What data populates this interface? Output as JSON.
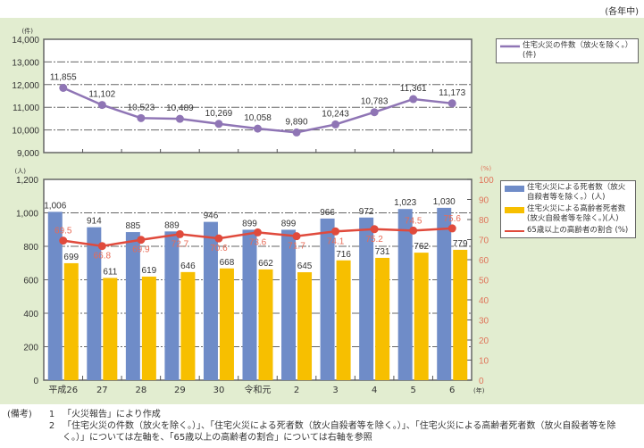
{
  "header": {
    "period_note": "(各年中)"
  },
  "chart_data": [
    {
      "type": "line",
      "title": "",
      "categories": [
        "平成26",
        "27",
        "28",
        "29",
        "30",
        "令和元",
        "2",
        "3",
        "4",
        "5",
        "6"
      ],
      "ylabel": "(件)",
      "ylim": [
        9000,
        14000
      ],
      "yticks": [
        9000,
        10000,
        11000,
        12000,
        13000,
        14000
      ],
      "ytick_labels": [
        "9,000",
        "10,000",
        "11,000",
        "12,000",
        "13,000",
        "14,000"
      ],
      "grid": true,
      "legend_position": "right",
      "series": [
        {
          "name": "住宅火災の件数（放火を除く。）(件)",
          "color": "#8f75b5",
          "values": [
            11855,
            11102,
            10523,
            10489,
            10269,
            10058,
            9890,
            10243,
            10783,
            11361,
            11173
          ],
          "labels": [
            "11,855",
            "11,102",
            "10,523",
            "10,489",
            "10,269",
            "10,058",
            "9,890",
            "10,243",
            "10,783",
            "11,361",
            "11,173"
          ]
        }
      ],
      "legend": [
        "住宅火災の件数（放火を除く。）",
        "(件)"
      ]
    },
    {
      "type": "bar",
      "title": "",
      "categories": [
        "平成26",
        "27",
        "28",
        "29",
        "30",
        "令和元",
        "2",
        "3",
        "4",
        "5",
        "6"
      ],
      "xlabel": "(年)",
      "ylabel": "(人)",
      "ylim": [
        0,
        1200
      ],
      "yticks": [
        0,
        200,
        400,
        600,
        800,
        1000,
        1200
      ],
      "ytick_labels": [
        "0",
        "200",
        "400",
        "600",
        "800",
        "1,000",
        "1,200"
      ],
      "y2label": "(%)",
      "y2lim": [
        0,
        100
      ],
      "y2ticks": [
        0,
        10,
        20,
        30,
        40,
        50,
        60,
        70,
        80,
        90,
        100
      ],
      "grid": true,
      "legend_position": "right",
      "series": [
        {
          "name": "住宅火災による死者数（放火自殺者等を除く。）(人)",
          "color": "#6f8cc8",
          "axis": "left",
          "values": [
            1006,
            914,
            885,
            889,
            946,
            899,
            899,
            966,
            972,
            1023,
            1030
          ],
          "labels": [
            "1,006",
            "914",
            "885",
            "889",
            "946",
            "899",
            "899",
            "966",
            "972",
            "1,023",
            "1,030"
          ]
        },
        {
          "name": "住宅火災による高齢者死者数（放火自殺者等を除く。）(人)",
          "color": "#f7bf00",
          "axis": "left",
          "values": [
            699,
            611,
            619,
            646,
            668,
            662,
            645,
            716,
            731,
            762,
            779
          ],
          "labels": [
            "699",
            "611",
            "619",
            "646",
            "668",
            "662",
            "645",
            "716",
            "731",
            "762",
            "779"
          ]
        },
        {
          "name": "65歳以上の高齢者の割合(%)",
          "color": "#e04a3c",
          "axis": "right",
          "type": "line",
          "values": [
            69.5,
            66.8,
            69.9,
            72.7,
            70.6,
            73.6,
            71.7,
            74.1,
            75.2,
            74.5,
            75.6
          ],
          "labels": [
            "69.5",
            "66.8",
            "69.9",
            "72.7",
            "70.6",
            "73.6",
            "71.7",
            "74.1",
            "75.2",
            "74.5",
            "75.6"
          ]
        }
      ],
      "legend": [
        [
          "住宅火災による死者数（放火",
          "自殺者等を除く。）(人)"
        ],
        [
          "住宅火災による高齢者死者数",
          "(放火自殺者等を除く。)(人)"
        ],
        [
          "65歳以上の高齢者の割合 (%)"
        ]
      ]
    }
  ],
  "notes": {
    "label": "(備考)",
    "items": [
      {
        "num": "1",
        "text": "「火災報告」により作成"
      },
      {
        "num": "2",
        "text": "「住宅火災の件数（放火を除く。）」、「住宅火災による死者数（放火自殺者等を除く。）」、「住宅火災による高齢者死者数（放火自殺者等を除く。）」については左軸を、「65歳以上の高齢者の割合」については右軸を参照"
      }
    ]
  }
}
